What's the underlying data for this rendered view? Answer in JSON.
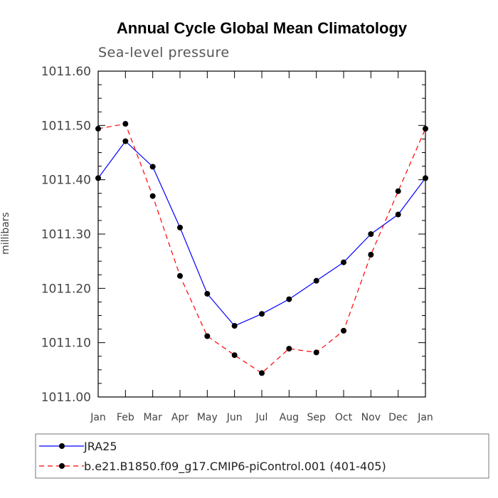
{
  "chart_data": {
    "type": "line",
    "title": "Annual Cycle Global Mean Climatology",
    "subtitle": "Sea-level pressure",
    "xlabel": "",
    "ylabel": "millibars",
    "ylim": [
      1011.0,
      1011.6
    ],
    "yticks": [
      "1011.00",
      "1011.10",
      "1011.20",
      "1011.30",
      "1011.40",
      "1011.50",
      "1011.60"
    ],
    "yticks_values": [
      1011.0,
      1011.1,
      1011.2,
      1011.3,
      1011.4,
      1011.5,
      1011.6
    ],
    "categories": [
      "Jan",
      "Feb",
      "Mar",
      "Apr",
      "May",
      "Jun",
      "Jul",
      "Aug",
      "Sep",
      "Oct",
      "Nov",
      "Dec",
      "Jan"
    ],
    "series": [
      {
        "name": "JRA25",
        "color": "#0000ff",
        "style": "solid",
        "values": [
          1011.403,
          1011.471,
          1011.424,
          1011.312,
          1011.19,
          1011.131,
          1011.153,
          1011.18,
          1011.214,
          1011.248,
          1011.3,
          1011.336,
          1011.403
        ]
      },
      {
        "name": "b.e21.B1850.f09_g17.CMIP6-piControl.001 (401-405)",
        "color": "#ff0000",
        "style": "dashed",
        "values": [
          1011.494,
          1011.503,
          1011.37,
          1011.223,
          1011.112,
          1011.077,
          1011.044,
          1011.089,
          1011.082,
          1011.122,
          1011.262,
          1011.379,
          1011.494
        ]
      }
    ],
    "legend": "bottom",
    "grid": false
  }
}
